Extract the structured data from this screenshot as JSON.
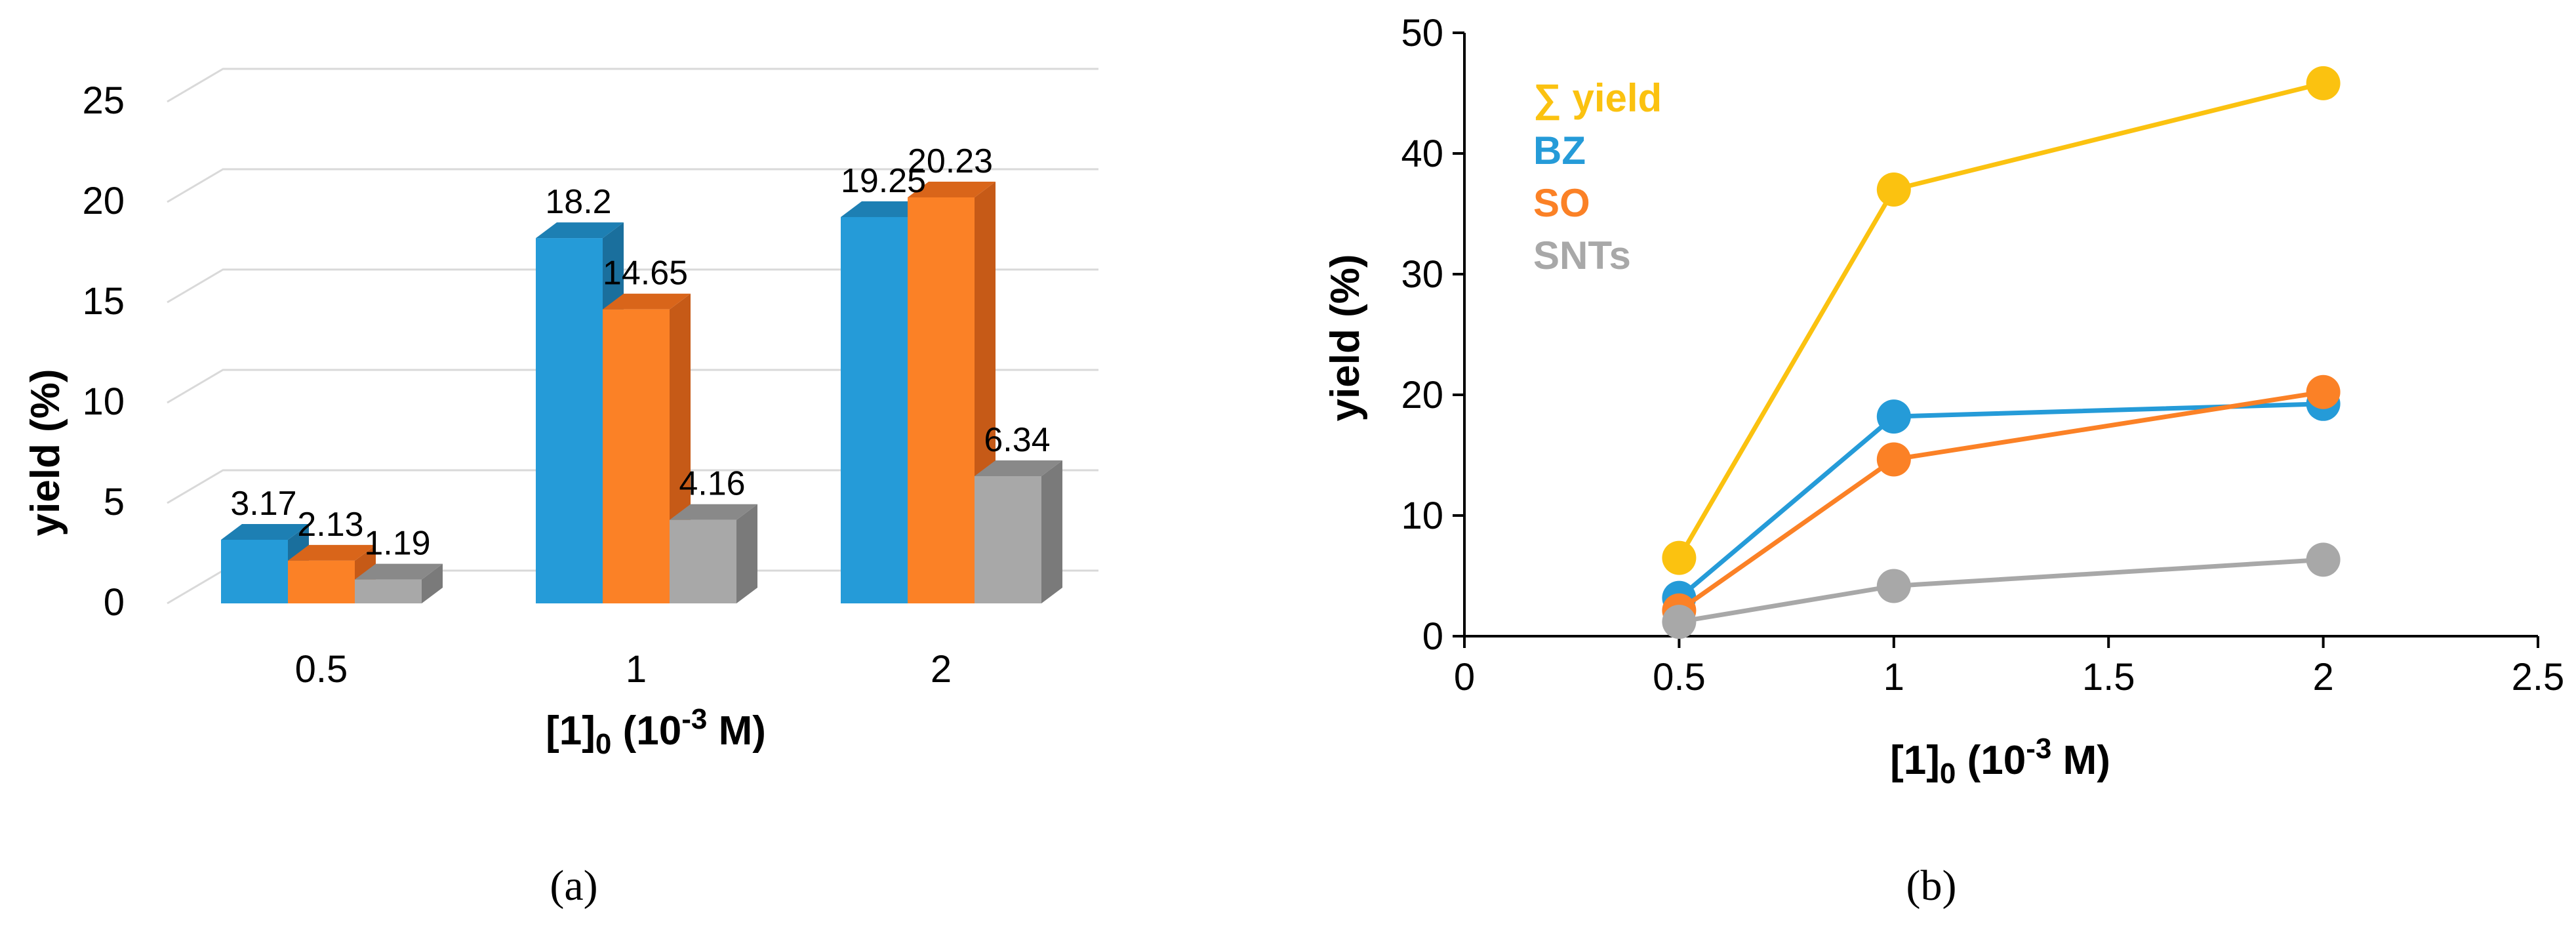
{
  "chart_data": [
    {
      "type": "bar",
      "panel": "(a)",
      "categories": [
        "0.5",
        "1",
        "2"
      ],
      "series": [
        {
          "name": "BZ",
          "values": [
            3.17,
            18.2,
            19.25
          ],
          "color": "#259bd8",
          "top_color": "#1d7fb3",
          "side_color": "#1a6f9d"
        },
        {
          "name": "SO",
          "values": [
            2.13,
            14.65,
            20.23
          ],
          "color": "#fb8126",
          "top_color": "#d9651a",
          "side_color": "#c65a17"
        },
        {
          "name": "SNTs",
          "values": [
            1.19,
            4.16,
            6.34
          ],
          "color": "#a8a8a8",
          "top_color": "#898989",
          "side_color": "#7a7a7a"
        }
      ],
      "value_labels": [
        [
          "3.17",
          "18.2",
          "19.25"
        ],
        [
          "2.13",
          "14.65",
          "20.23"
        ],
        [
          "1.19",
          "4.16",
          "6.34"
        ]
      ],
      "xlabel": "[1]",
      "xlabel_sub": "0",
      "xlabel_rest": " (10",
      "xlabel_sup": "-3",
      "xlabel_end": " M)",
      "ylabel": "yield (%)",
      "ylim": [
        0,
        25
      ],
      "yticks": [
        "0",
        "5",
        "10",
        "15",
        "20",
        "25"
      ],
      "grid": true
    },
    {
      "type": "line",
      "panel": "(b)",
      "x": [
        0.5,
        1,
        2
      ],
      "series": [
        {
          "name": "∑ yield",
          "values": [
            6.49,
            37.01,
            45.82
          ],
          "color": "#fbc210"
        },
        {
          "name": "BZ",
          "values": [
            3.17,
            18.2,
            19.25
          ],
          "color": "#259bd8"
        },
        {
          "name": "SO",
          "values": [
            2.13,
            14.65,
            20.23
          ],
          "color": "#fb8126"
        },
        {
          "name": "SNTs",
          "values": [
            1.19,
            4.16,
            6.34
          ],
          "color": "#a8a8a8"
        }
      ],
      "xlabel": "[1]",
      "xlabel_sub": "0",
      "xlabel_rest": " (10",
      "xlabel_sup": "-3",
      "xlabel_end": " M)",
      "ylabel": "yield (%)",
      "xlim": [
        0,
        2.5
      ],
      "ylim": [
        0,
        50
      ],
      "xticks": [
        "0",
        "0.5",
        "1",
        "1.5",
        "2",
        "2.5"
      ],
      "yticks": [
        "0",
        "10",
        "20",
        "30",
        "40",
        "50"
      ],
      "legend_position": "top-left",
      "grid": false
    }
  ]
}
